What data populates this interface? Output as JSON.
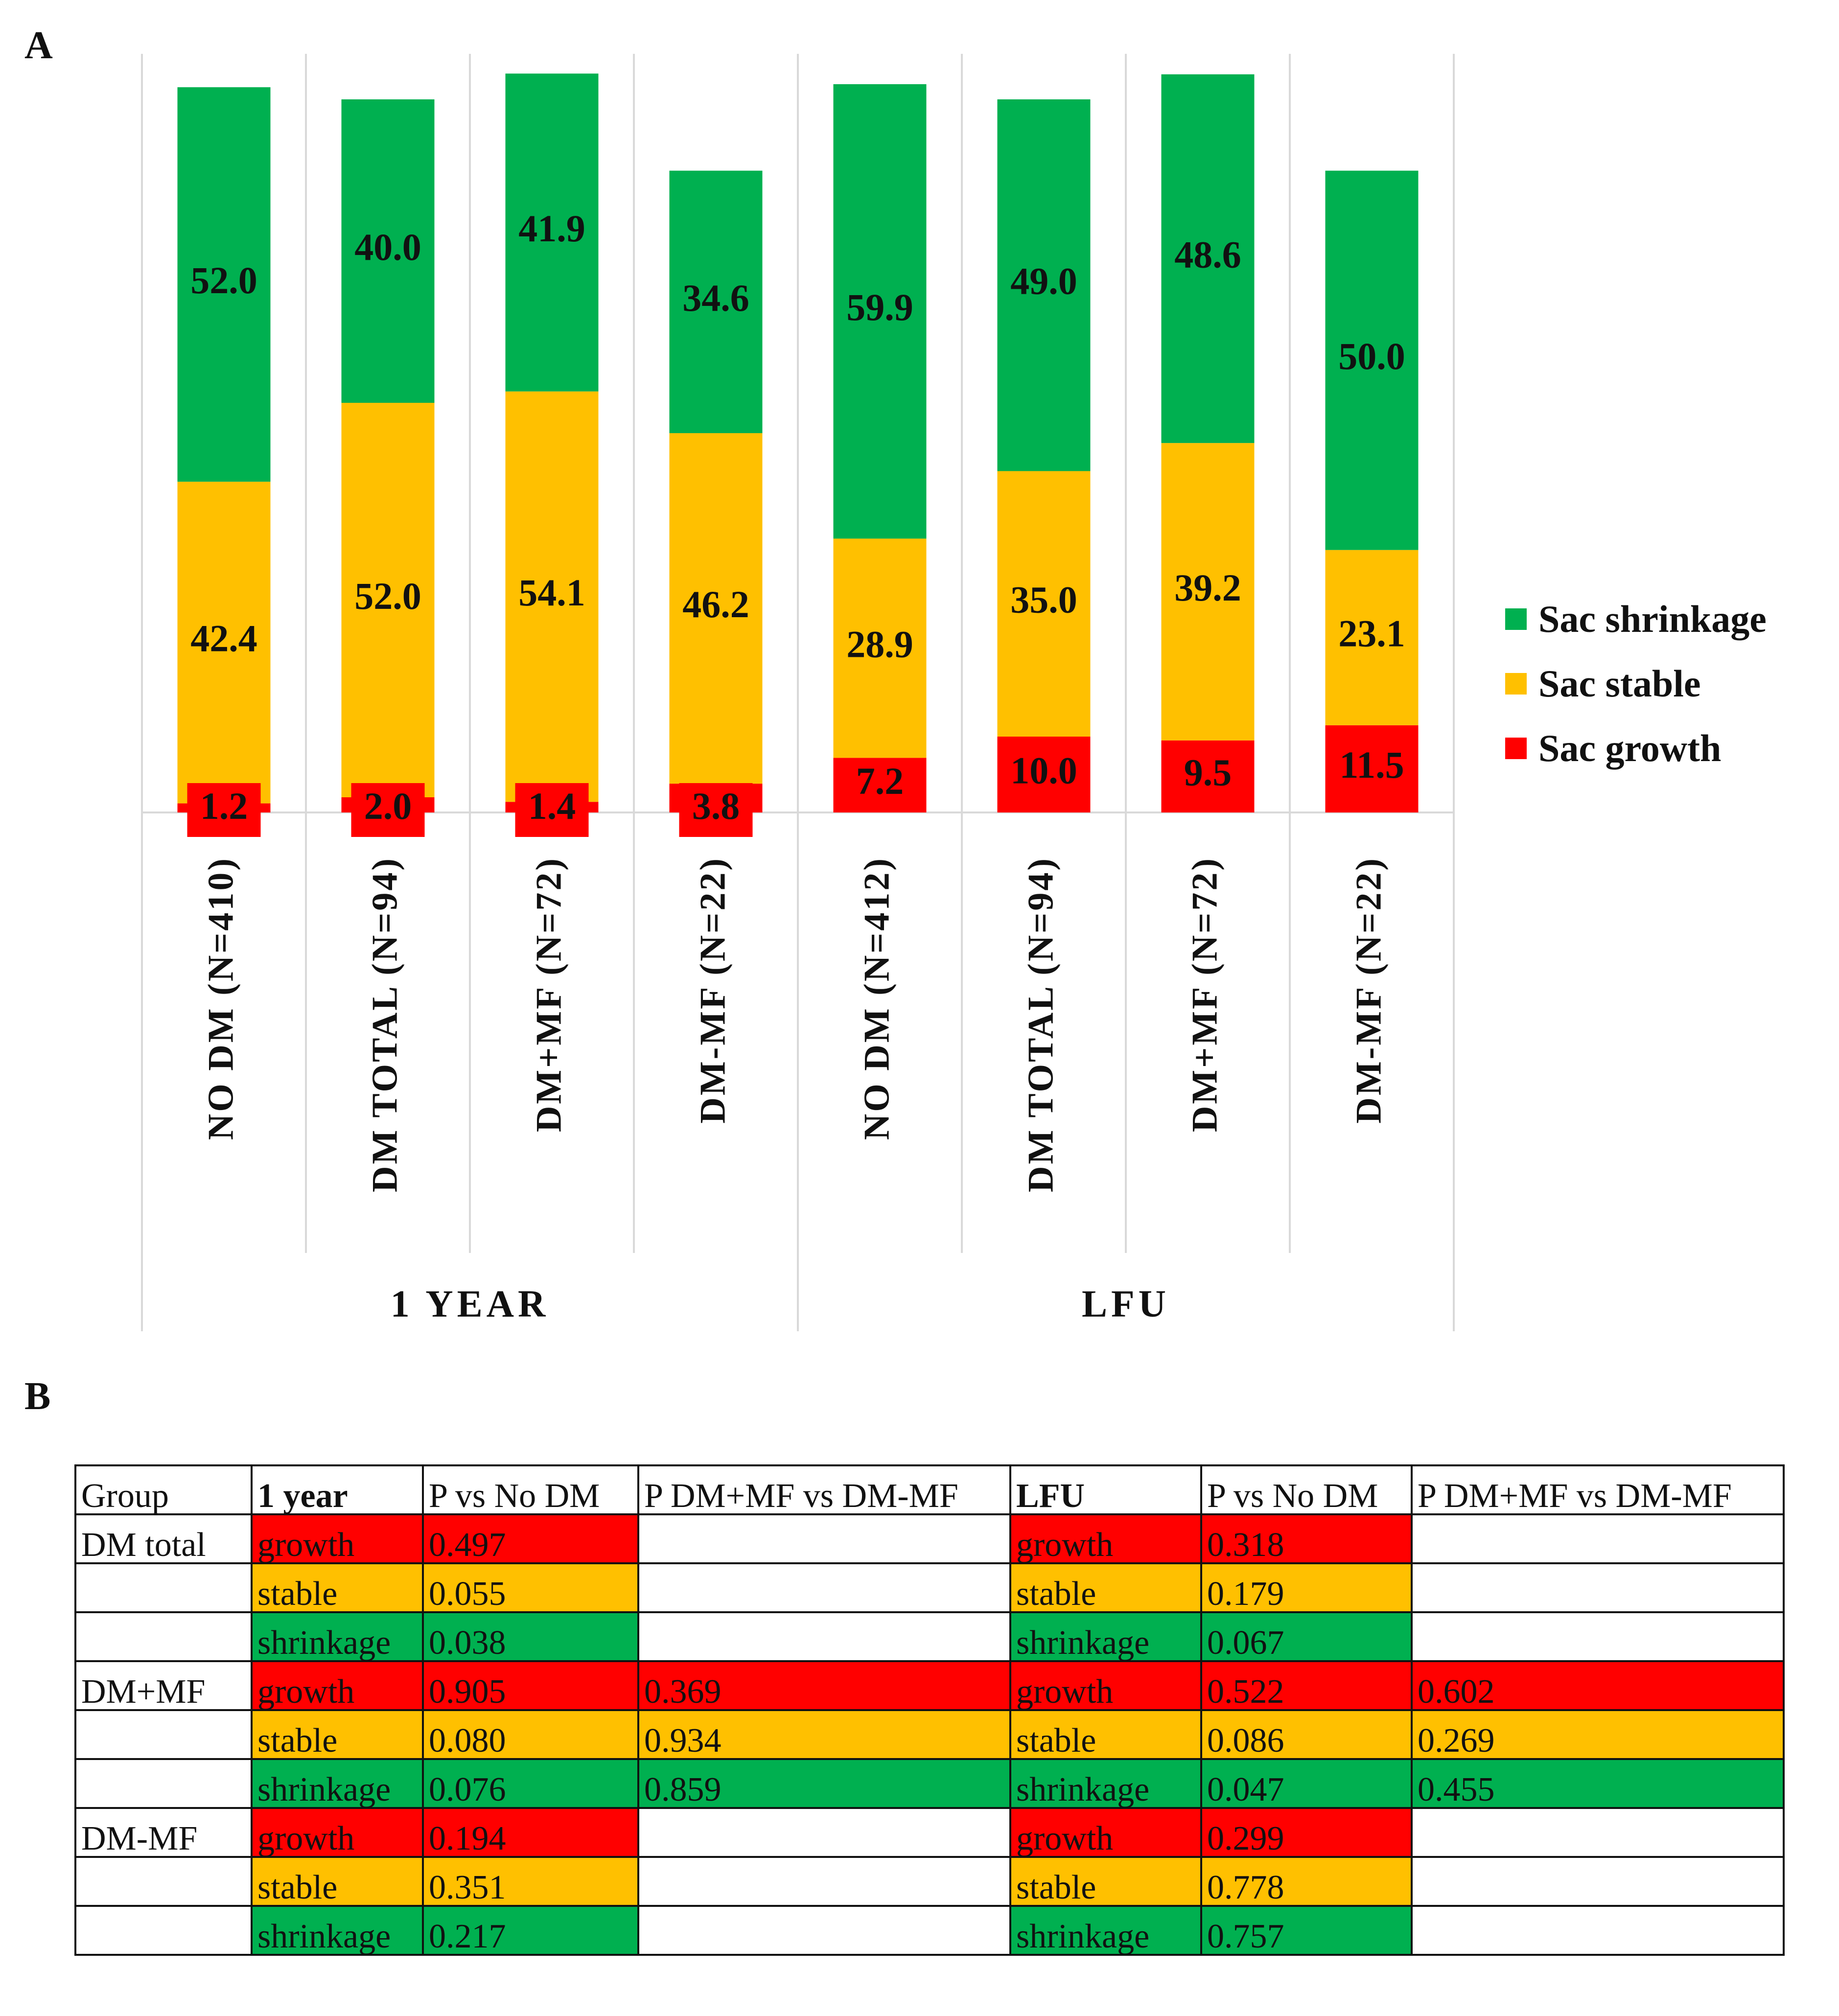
{
  "panels": {
    "a_label": "A",
    "b_label": "B"
  },
  "chart_data": {
    "type": "bar",
    "stacked": true,
    "categories": [
      "NO DM (N=410)",
      "DM TOTAL (N=94)",
      "DM+MF (N=72)",
      "DM-MF (N=22)",
      "NO DM (N=412)",
      "DM TOTAL (N=94)",
      "DM+MF (N=72)",
      "DM-MF (N=22)"
    ],
    "groups": [
      {
        "label": "1 YEAR",
        "category_count": 4
      },
      {
        "label": "LFU",
        "category_count": 4
      }
    ],
    "series": [
      {
        "name": "Sac growth",
        "color": "#ff0000",
        "values": [
          1.2,
          2.0,
          1.4,
          3.8,
          7.2,
          10.0,
          9.5,
          11.5
        ],
        "labels": [
          "1.2",
          "2.0",
          "1.4",
          "3.8",
          "7.2",
          "10.0",
          "9.5",
          "11.5"
        ]
      },
      {
        "name": "Sac stable",
        "color": "#ffc000",
        "values": [
          42.4,
          52.0,
          54.1,
          46.2,
          28.9,
          35.0,
          39.2,
          23.1
        ],
        "labels": [
          "42.4",
          "52.0",
          "54.1",
          "46.2",
          "28.9",
          "35.0",
          "39.2",
          "23.1"
        ]
      },
      {
        "name": "Sac shrinkage",
        "color": "#00b050",
        "values": [
          52.0,
          40.0,
          41.9,
          34.6,
          59.9,
          49.0,
          48.6,
          50.0
        ],
        "labels": [
          "52.0",
          "40.0",
          "41.9",
          "34.6",
          "59.9",
          "49.0",
          "48.6",
          "50.0"
        ]
      }
    ],
    "legend": [
      "Sac shrinkage",
      "Sac stable",
      "Sac growth"
    ],
    "legend_position": "right",
    "ylim": [
      0,
      100
    ],
    "grid": false
  },
  "table": {
    "headers": [
      "Group",
      "1 year",
      "P vs No DM",
      "P DM+MF vs DM-MF",
      "LFU",
      "P  vs No DM",
      "P DM+MF vs DM-MF"
    ],
    "rows": [
      {
        "group": "DM total",
        "outcome": "growth",
        "p1": "0.497",
        "p1c": "",
        "lfu": "growth",
        "p2": "0.318",
        "p2c": ""
      },
      {
        "group": "",
        "outcome": "stable",
        "p1": "0.055",
        "p1c": "",
        "lfu": "stable",
        "p2": "0.179",
        "p2c": ""
      },
      {
        "group": "",
        "outcome": "shrinkage",
        "p1": "0.038",
        "p1c": "",
        "lfu": "shrinkage",
        "p2": "0.067",
        "p2c": ""
      },
      {
        "group": "DM+MF",
        "outcome": "growth",
        "p1": "0.905",
        "p1c": "0.369",
        "lfu": "growth",
        "p2": "0.522",
        "p2c": "0.602"
      },
      {
        "group": "",
        "outcome": "stable",
        "p1": "0.080",
        "p1c": "0.934",
        "lfu": "stable",
        "p2": "0.086",
        "p2c": "0.269"
      },
      {
        "group": "",
        "outcome": "shrinkage",
        "p1": "0.076",
        "p1c": "0.859",
        "lfu": "shrinkage",
        "p2": "0.047",
        "p2c": "0.455"
      },
      {
        "group": "DM-MF",
        "outcome": "growth",
        "p1": "0.194",
        "p1c": "",
        "lfu": "growth",
        "p2": "0.299",
        "p2c": ""
      },
      {
        "group": "",
        "outcome": "stable",
        "p1": "0.351",
        "p1c": "",
        "lfu": "stable",
        "p2": "0.778",
        "p2c": ""
      },
      {
        "group": "",
        "outcome": "shrinkage",
        "p1": "0.217",
        "p1c": "",
        "lfu": "shrinkage",
        "p2": "0.757",
        "p2c": ""
      }
    ],
    "outcome_colors": {
      "growth": "#ff0000",
      "stable": "#ffc000",
      "shrinkage": "#00b050"
    }
  }
}
